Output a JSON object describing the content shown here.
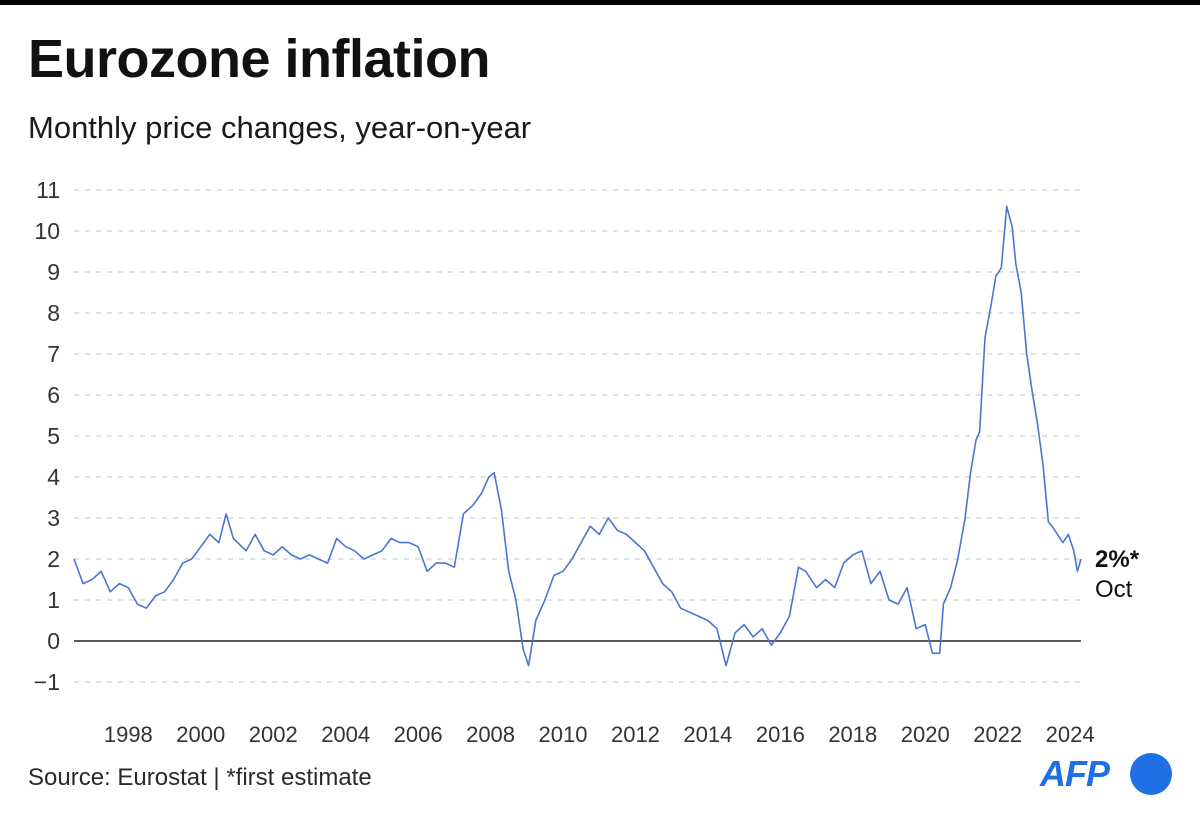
{
  "title": "Eurozone inflation",
  "subtitle": "Monthly price changes, year-on-year",
  "footer": {
    "source": "Source: Eurostat | *first estimate"
  },
  "logo": {
    "text": "AFP",
    "brand_color": "#1f6fe5"
  },
  "colors": {
    "line": "#4a76d1",
    "grid": "#c8d4dc",
    "zero_line": "#222222"
  },
  "chart_data": {
    "type": "line",
    "title": "Eurozone inflation",
    "subtitle": "Monthly price changes, year-on-year",
    "ylim": [
      -1,
      11
    ],
    "yticks": [
      -1,
      0,
      1,
      2,
      3,
      4,
      5,
      6,
      7,
      8,
      9,
      10,
      11
    ],
    "ytick_labels": [
      "−1",
      "0",
      "1",
      "2",
      "3",
      "4",
      "5",
      "6",
      "7",
      "8",
      "9",
      "10",
      "11"
    ],
    "xlim": [
      1997.0,
      2024.8
    ],
    "xticks": [
      1998,
      2000,
      2002,
      2004,
      2006,
      2008,
      2010,
      2012,
      2014,
      2016,
      2018,
      2020,
      2022,
      2024
    ],
    "grid": true,
    "grid_style": "dashed horizontal",
    "last_label": {
      "value": "2%*",
      "month": "Oct"
    },
    "series": [
      {
        "x": [
          1997.0,
          1997.25,
          1997.5,
          1997.75,
          1998.0,
          1998.25,
          1998.5,
          1998.75,
          1999.0,
          1999.25,
          1999.5,
          1999.75,
          2000.0,
          2000.25,
          2000.5,
          2000.75,
          2001.0,
          2001.2,
          2001.4,
          2001.75,
          2002.0,
          2002.25,
          2002.5,
          2002.75,
          2003.0,
          2003.25,
          2003.5,
          2003.75,
          2004.0,
          2004.25,
          2004.5,
          2004.75,
          2005.0,
          2005.25,
          2005.5,
          2005.75,
          2006.0,
          2006.25,
          2006.5,
          2006.75,
          2007.0,
          2007.25,
          2007.5,
          2007.75,
          2008.0,
          2008.25,
          2008.45,
          2008.6,
          2008.8,
          2009.0,
          2009.2,
          2009.4,
          2009.55,
          2009.75,
          2010.0,
          2010.25,
          2010.5,
          2010.75,
          2011.0,
          2011.25,
          2011.5,
          2011.75,
          2012.0,
          2012.25,
          2012.5,
          2012.75,
          2013.0,
          2013.25,
          2013.5,
          2013.75,
          2014.0,
          2014.25,
          2014.5,
          2014.75,
          2015.0,
          2015.25,
          2015.5,
          2015.75,
          2016.0,
          2016.25,
          2016.5,
          2016.75,
          2017.0,
          2017.2,
          2017.5,
          2017.75,
          2018.0,
          2018.25,
          2018.5,
          2018.75,
          2019.0,
          2019.25,
          2019.5,
          2019.75,
          2020.0,
          2020.25,
          2020.5,
          2020.7,
          2020.9,
          2021.0,
          2021.2,
          2021.4,
          2021.6,
          2021.75,
          2021.9,
          2022.0,
          2022.15,
          2022.3,
          2022.45,
          2022.6,
          2022.75,
          2022.9,
          2023.0,
          2023.15,
          2023.3,
          2023.45,
          2023.6,
          2023.75,
          2023.9,
          2024.0,
          2024.15,
          2024.3,
          2024.45,
          2024.6,
          2024.7,
          2024.8
        ],
        "y": [
          2.0,
          1.4,
          1.5,
          1.7,
          1.2,
          1.4,
          1.3,
          0.9,
          0.8,
          1.1,
          1.2,
          1.5,
          1.9,
          2.0,
          2.3,
          2.6,
          2.4,
          3.1,
          2.5,
          2.2,
          2.6,
          2.2,
          2.1,
          2.3,
          2.1,
          2.0,
          2.1,
          2.0,
          1.9,
          2.5,
          2.3,
          2.2,
          2.0,
          2.1,
          2.2,
          2.5,
          2.4,
          2.4,
          2.3,
          1.7,
          1.9,
          1.9,
          1.8,
          3.1,
          3.3,
          3.6,
          4.0,
          4.1,
          3.2,
          1.7,
          1.0,
          -0.2,
          -0.6,
          0.5,
          1.0,
          1.6,
          1.7,
          2.0,
          2.4,
          2.8,
          2.6,
          3.0,
          2.7,
          2.6,
          2.4,
          2.2,
          1.8,
          1.4,
          1.2,
          0.8,
          0.7,
          0.6,
          0.5,
          0.3,
          -0.6,
          0.2,
          0.4,
          0.1,
          0.3,
          -0.1,
          0.2,
          0.6,
          1.8,
          1.7,
          1.3,
          1.5,
          1.3,
          1.9,
          2.1,
          2.2,
          1.4,
          1.7,
          1.0,
          0.9,
          1.3,
          0.3,
          0.4,
          -0.3,
          -0.3,
          0.9,
          1.3,
          2.0,
          3.0,
          4.1,
          4.9,
          5.1,
          7.4,
          8.1,
          8.9,
          9.1,
          10.6,
          10.1,
          9.2,
          8.5,
          7.0,
          6.1,
          5.3,
          4.3,
          2.9,
          2.8,
          2.6,
          2.4,
          2.6,
          2.2,
          1.7,
          2.0
        ]
      }
    ]
  }
}
